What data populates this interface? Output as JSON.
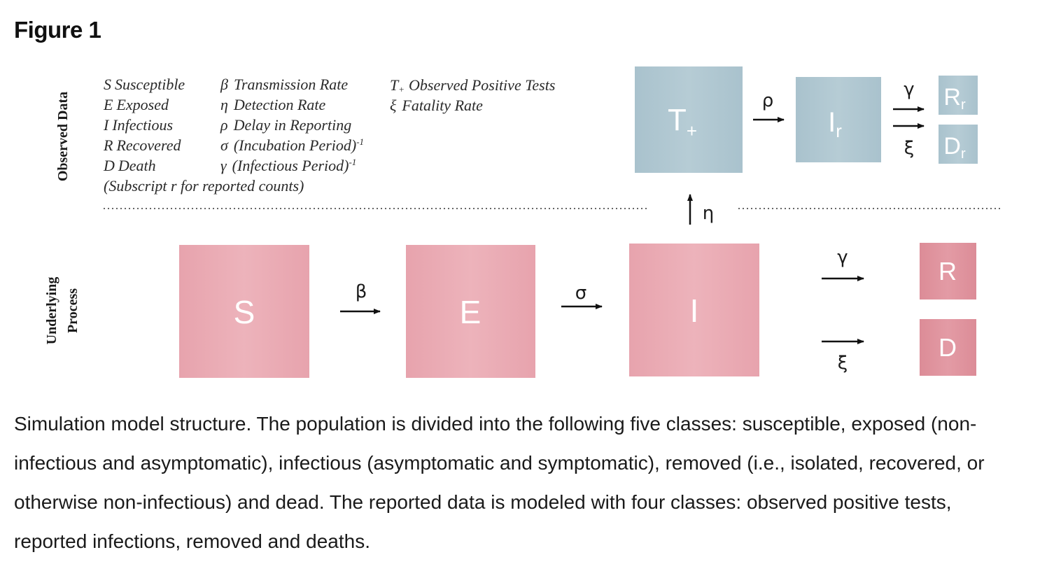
{
  "figure": {
    "title": "Figure 1"
  },
  "legend": {
    "col1": [
      {
        "sym": "S",
        "text": "Susceptible"
      },
      {
        "sym": "E",
        "text": "Exposed"
      },
      {
        "sym": "I",
        "text": "Infectious"
      },
      {
        "sym": "R",
        "text": "Recovered"
      },
      {
        "sym": "D",
        "text": "Death"
      }
    ],
    "note": "(Subscript r for reported counts)",
    "col2": [
      {
        "sym": "β",
        "text": "Transmission Rate",
        "sup": ""
      },
      {
        "sym": "η",
        "text": "Detection Rate",
        "sup": ""
      },
      {
        "sym": "ρ",
        "text": "Delay in Reporting",
        "sup": ""
      },
      {
        "sym": "σ",
        "text": "(Incubation Period)",
        "sup": "-1"
      },
      {
        "sym": "γ",
        "text": "(Infectious Period)",
        "sup": "-1"
      }
    ],
    "col3": [
      {
        "sym": "T",
        "sub": "+",
        "text": "Observed Positive Tests"
      },
      {
        "sym": "ξ",
        "sub": "",
        "text": "Fatality Rate"
      }
    ]
  },
  "side_labels": {
    "observed": "Observed Data",
    "underlying_line1": "Underlying",
    "underlying_line2": "Process"
  },
  "observed_boxes": {
    "t_plus": {
      "main": "T",
      "sub": "+"
    },
    "i_r": {
      "main": "I",
      "sub": "r"
    },
    "r_r": {
      "main": "R",
      "sub": "r"
    },
    "d_r": {
      "main": "D",
      "sub": "r"
    }
  },
  "underlying_boxes": {
    "s": "S",
    "e": "E",
    "i": "I",
    "r": "R",
    "d": "D"
  },
  "params": {
    "beta": "β",
    "sigma": "σ",
    "gamma": "γ",
    "xi": "ξ",
    "eta": "η",
    "rho": "ρ"
  },
  "colors": {
    "observed_box": "#afc7d1",
    "underlying_box": "#e8a9b1",
    "underlying_box_dark": "#df919c"
  },
  "caption": "Simulation model structure. The population is divided into the following five classes: susceptible, exposed (non-infectious and asymptomatic), infectious (asymptomatic and symptomatic), removed (i.e., isolated, recovered, or otherwise non-infectious) and dead. The reported data is modeled with four classes: observed positive tests, reported infections, removed and deaths."
}
